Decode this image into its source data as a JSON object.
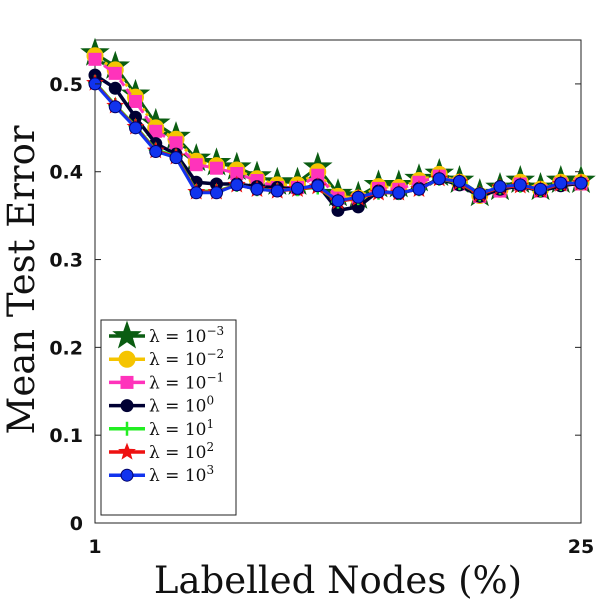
{
  "chart_data": {
    "type": "line",
    "title": "",
    "xlabel": "Labelled Nodes (%)",
    "ylabel": "Mean Test Error",
    "xlim": [
      1,
      25
    ],
    "ylim": [
      0,
      0.55
    ],
    "x_ticks": [
      "1",
      "25"
    ],
    "y_ticks": [
      "0",
      "0.1",
      "0.2",
      "0.3",
      "0.4",
      "0.5"
    ],
    "grid": false,
    "legend_position": "bottom-left",
    "x": [
      1,
      2,
      3,
      4,
      5,
      6,
      7,
      8,
      9,
      10,
      11,
      12,
      13,
      14,
      15,
      16,
      17,
      18,
      19,
      20,
      21,
      22,
      23,
      24,
      25
    ],
    "series": [
      {
        "name": "λ = 10^-3",
        "legend_base": "λ = 10",
        "legend_exp": "−3",
        "color": "#0b5d12",
        "marker": "star-large",
        "values": [
          0.535,
          0.52,
          0.488,
          0.455,
          0.44,
          0.415,
          0.41,
          0.405,
          0.395,
          0.388,
          0.388,
          0.405,
          0.375,
          0.372,
          0.385,
          0.385,
          0.392,
          0.398,
          0.39,
          0.375,
          0.382,
          0.39,
          0.382,
          0.39,
          0.39
        ]
      },
      {
        "name": "λ = 10^-2",
        "legend_base": "λ = 10",
        "legend_exp": "−2",
        "color": "#f5c400",
        "marker": "circle",
        "values": [
          0.532,
          0.516,
          0.485,
          0.45,
          0.437,
          0.412,
          0.407,
          0.402,
          0.392,
          0.385,
          0.385,
          0.4,
          0.372,
          0.37,
          0.383,
          0.382,
          0.39,
          0.397,
          0.388,
          0.373,
          0.38,
          0.388,
          0.38,
          0.388,
          0.388
        ]
      },
      {
        "name": "λ = 10^-1",
        "legend_base": "λ = 10",
        "legend_exp": "−1",
        "color": "#ff33bb",
        "marker": "square",
        "values": [
          0.528,
          0.512,
          0.48,
          0.446,
          0.433,
          0.408,
          0.404,
          0.398,
          0.39,
          0.382,
          0.382,
          0.396,
          0.37,
          0.368,
          0.381,
          0.38,
          0.388,
          0.395,
          0.386,
          0.372,
          0.378,
          0.386,
          0.378,
          0.386,
          0.386
        ]
      },
      {
        "name": "λ = 10^0",
        "legend_base": "λ = 10",
        "legend_exp": "0",
        "color": "#000033",
        "marker": "circle",
        "values": [
          0.51,
          0.495,
          0.462,
          0.432,
          0.42,
          0.388,
          0.386,
          0.386,
          0.383,
          0.382,
          0.38,
          0.385,
          0.356,
          0.36,
          0.378,
          0.375,
          0.381,
          0.392,
          0.385,
          0.372,
          0.38,
          0.384,
          0.378,
          0.384,
          0.387
        ]
      },
      {
        "name": "λ = 10^1",
        "legend_base": "λ = 10",
        "legend_exp": "1",
        "color": "#22ee22",
        "marker": "plus",
        "values": [
          0.502,
          0.476,
          0.452,
          0.425,
          0.418,
          0.378,
          0.378,
          0.385,
          0.38,
          0.379,
          0.38,
          0.382,
          0.366,
          0.37,
          0.376,
          0.376,
          0.38,
          0.392,
          0.387,
          0.374,
          0.382,
          0.384,
          0.379,
          0.386,
          0.387
        ]
      },
      {
        "name": "λ = 10^2",
        "legend_base": "λ = 10",
        "legend_exp": "2",
        "color": "#ee1111",
        "marker": "star",
        "values": [
          0.501,
          0.475,
          0.451,
          0.424,
          0.417,
          0.377,
          0.377,
          0.385,
          0.38,
          0.378,
          0.38,
          0.383,
          0.366,
          0.37,
          0.376,
          0.376,
          0.38,
          0.392,
          0.388,
          0.374,
          0.382,
          0.384,
          0.379,
          0.386,
          0.387
        ]
      },
      {
        "name": "λ = 10^3",
        "legend_base": "λ = 10",
        "legend_exp": "3",
        "color": "#1133ee",
        "marker": "circle",
        "values": [
          0.5,
          0.474,
          0.45,
          0.423,
          0.416,
          0.376,
          0.376,
          0.385,
          0.38,
          0.378,
          0.381,
          0.384,
          0.367,
          0.371,
          0.377,
          0.376,
          0.38,
          0.392,
          0.389,
          0.375,
          0.383,
          0.385,
          0.38,
          0.387,
          0.387
        ]
      }
    ]
  }
}
